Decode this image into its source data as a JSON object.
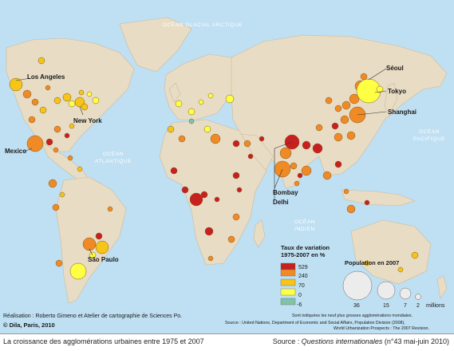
{
  "map": {
    "oceans": [
      {
        "lines": [
          "OCÉAN GLACIAL ARCTIQUE"
        ]
      },
      {
        "lines": [
          "OCÉAN",
          "ATLANTIQUE"
        ]
      },
      {
        "lines": [
          "OCÉAN",
          "PACIFIQUE"
        ]
      },
      {
        "lines": [
          "OCÉAN",
          "INDIEN"
        ]
      }
    ],
    "cities": [
      "Los Angeles",
      "New York",
      "Mexico",
      "São Paulo",
      "Séoul",
      "Tokyo",
      "Shanghai",
      "Bombay",
      "Delhi"
    ]
  },
  "legend": {
    "rate_title_1": "Taux de variation",
    "rate_title_2": "1975-2007 en %",
    "rate_values": [
      "529",
      "240",
      "70",
      "0",
      "-6"
    ],
    "rate_colors": [
      "#c8201f",
      "#f08a24",
      "#f5c518",
      "#ffff44",
      "#7fc4a8"
    ],
    "pop_title": "Population en 2007",
    "pop_values": [
      "36",
      "15",
      "7",
      "2"
    ],
    "pop_unit": "millions",
    "note": "Sont indiquées les neuf plus grosses agglomérations mondiales.",
    "source_1": "Source : United Nations, Department of Economic and Social Affairs, Population Division (2008),",
    "source_2": "World Urbanization Prospects : The 2007 Revision."
  },
  "credits": {
    "realisation": "Réalisation : Roberto Gimeno et Atelier de cartographie de Sciences Po.",
    "copyright": "© Dila, Paris, 2010"
  },
  "caption": {
    "left": "La croissance des agglomérations urbaines entre 1975 et 2007",
    "right_prefix": "Source : ",
    "right_italic": "Questions internationales",
    "right_suffix": " (n°43 mai-juin 2010)"
  }
}
